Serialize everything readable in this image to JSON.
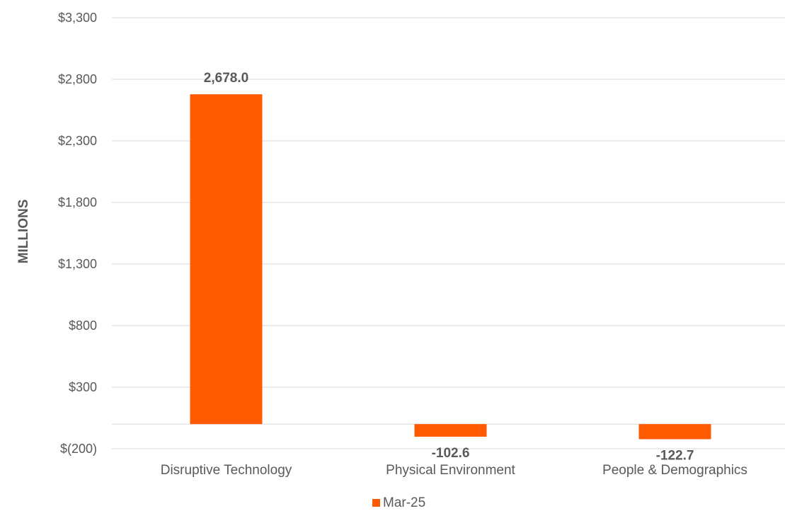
{
  "chart_data": {
    "type": "bar",
    "title": "",
    "xlabel": "",
    "ylabel": "MILLIONS",
    "categories": [
      "Disruptive Technology",
      "Physical Environment",
      "People & Demographics"
    ],
    "series": [
      {
        "name": "Mar-25",
        "values": [
          2678.0,
          -102.6,
          -122.7
        ],
        "data_labels": [
          "2,678.0",
          "-102.6",
          "-122.7"
        ],
        "color": "#FF5A00"
      }
    ],
    "ylim": [
      -200,
      3300
    ],
    "yticks": [
      -200,
      300,
      800,
      1300,
      1800,
      2300,
      2800,
      3300
    ],
    "ytick_labels": [
      "$(200)",
      "$300",
      "$800",
      "$1,300",
      "$1,800",
      "$2,300",
      "$2,800",
      "$3,300"
    ],
    "grid": true,
    "legend": "bottom"
  },
  "colors": {
    "bar": "#FF5A00",
    "gridline": "#D9D9D9",
    "text": "#595959"
  }
}
